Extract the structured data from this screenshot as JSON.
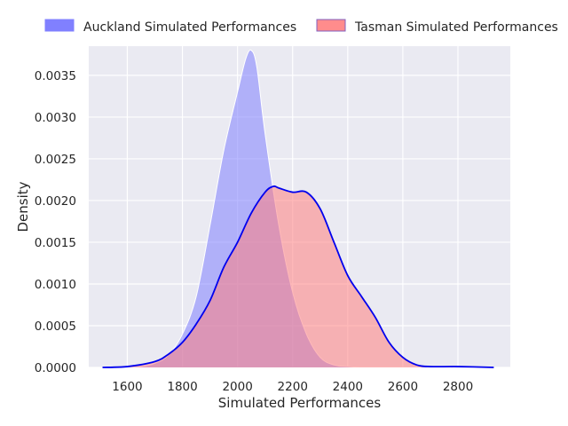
{
  "chart_data": {
    "type": "area",
    "xlabel": "Simulated Performances",
    "ylabel": "Density",
    "xlim": [
      1460,
      2990
    ],
    "ylim": [
      0,
      0.00385
    ],
    "x_ticks": [
      "1600",
      "1800",
      "2000",
      "2200",
      "2400",
      "2600",
      "2800"
    ],
    "x_tick_values": [
      1600,
      1800,
      2000,
      2200,
      2400,
      2600,
      2800
    ],
    "y_ticks": [
      "0.0000",
      "0.0005",
      "0.0010",
      "0.0015",
      "0.0020",
      "0.0025",
      "0.0030",
      "0.0035"
    ],
    "y_tick_values": [
      0,
      0.0005,
      0.001,
      0.0015,
      0.002,
      0.0025,
      0.003,
      0.0035
    ],
    "grid": true,
    "background": "#eaeaf2",
    "legend_position": "top",
    "series": [
      {
        "name": "Auckland Simulated Performances",
        "fill": "#8080ff",
        "fill_opacity": 0.55,
        "stroke": "#ffffff",
        "x": [
          1580,
          1650,
          1700,
          1750,
          1800,
          1850,
          1900,
          1950,
          2000,
          2030,
          2050,
          2070,
          2100,
          2150,
          2200,
          2250,
          2300,
          2350,
          2400,
          2450
        ],
        "y": [
          0.0,
          1e-05,
          5e-05,
          0.00015,
          0.0004,
          0.00085,
          0.0017,
          0.0026,
          0.0033,
          0.0037,
          0.0038,
          0.0036,
          0.0028,
          0.0017,
          0.0009,
          0.0004,
          0.00012,
          3e-05,
          1e-05,
          0.0
        ]
      },
      {
        "name": "Tasman Simulated Performances",
        "fill": "#ff8080",
        "fill_opacity": 0.55,
        "stroke": "#0000ee",
        "x": [
          1510,
          1600,
          1700,
          1750,
          1800,
          1850,
          1900,
          1950,
          2000,
          2050,
          2100,
          2130,
          2150,
          2200,
          2250,
          2300,
          2350,
          2400,
          2450,
          2500,
          2550,
          2600,
          2650,
          2700,
          2800,
          2930
        ],
        "y": [
          0.0,
          1e-05,
          7e-05,
          0.00016,
          0.0003,
          0.00052,
          0.0008,
          0.0012,
          0.0015,
          0.00185,
          0.0021,
          0.00217,
          0.00215,
          0.0021,
          0.0021,
          0.0019,
          0.0015,
          0.0011,
          0.00085,
          0.0006,
          0.0003,
          0.00012,
          3e-05,
          1e-05,
          1e-05,
          0.0
        ]
      }
    ]
  }
}
